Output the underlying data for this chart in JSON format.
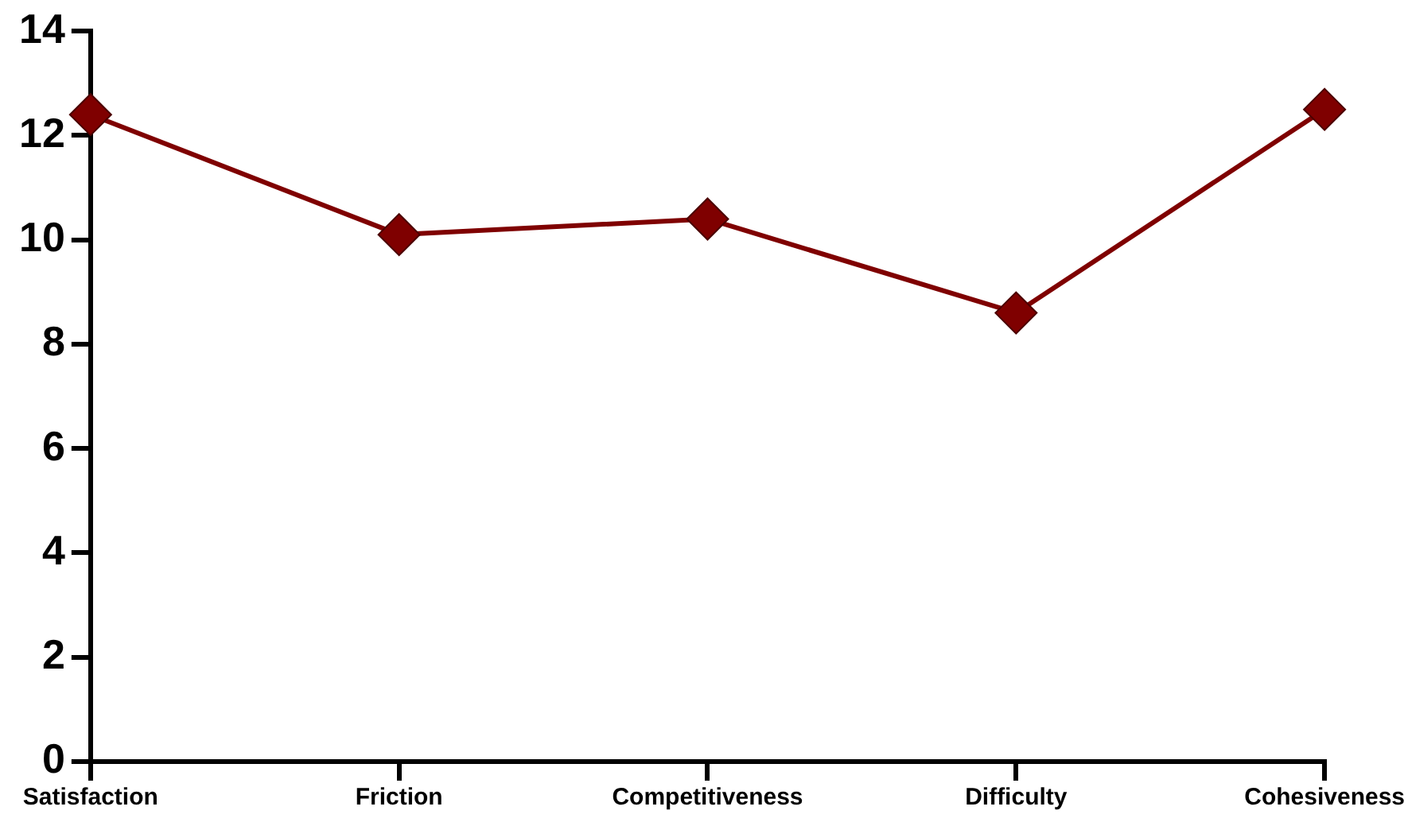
{
  "chart_data": {
    "type": "line",
    "categories": [
      "Satisfaction",
      "Friction",
      "Competitiveness",
      "Difficulty",
      "Cohesiveness"
    ],
    "series": [
      {
        "color": "#7f0000",
        "values": [
          12.4,
          10.1,
          10.4,
          8.6,
          12.5
        ]
      }
    ],
    "ylim": [
      0,
      14
    ],
    "yticks": [
      0,
      2,
      4,
      6,
      8,
      10,
      12,
      14
    ],
    "grid": false,
    "legend": false,
    "marker": "diamond",
    "line_style": "solid"
  }
}
